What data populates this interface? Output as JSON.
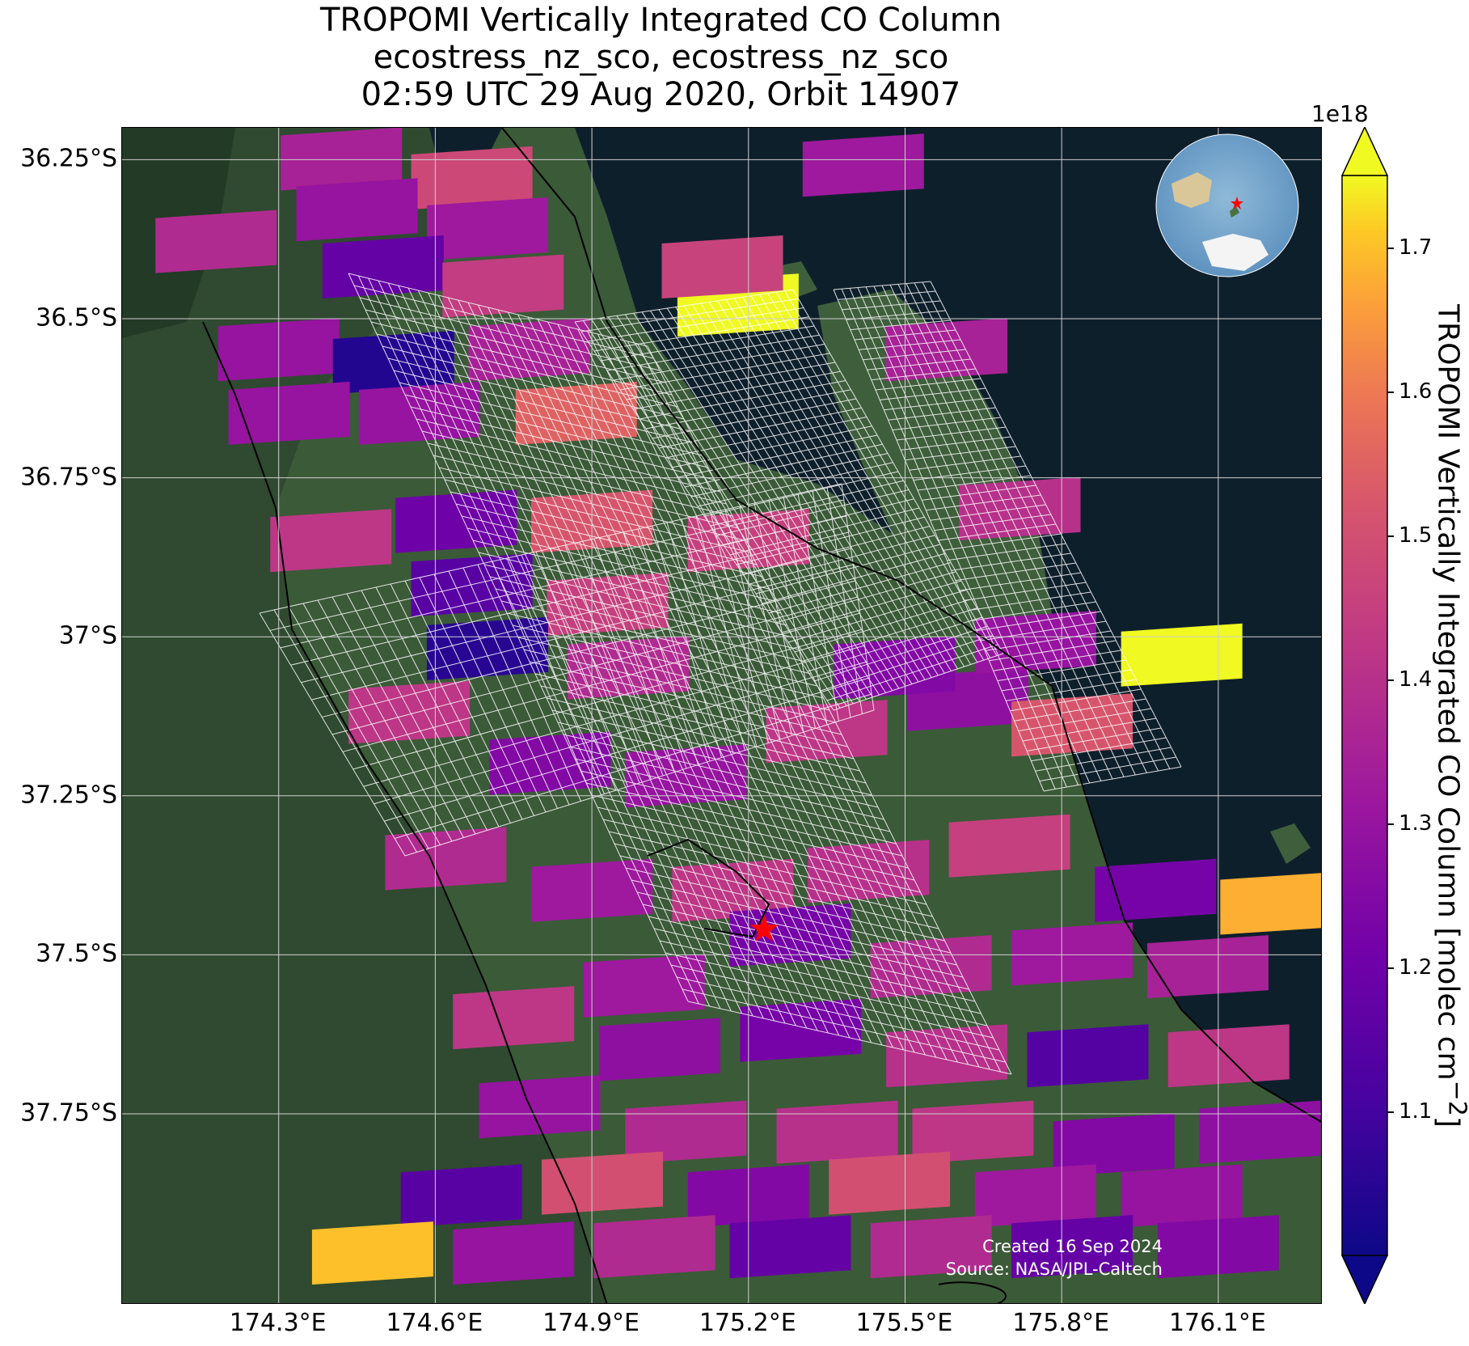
{
  "title": {
    "line1": "TROPOMI Vertically Integrated CO Column",
    "line2": "ecostress_nz_sco, ecostress_nz_sco",
    "line3": "02:59 UTC 29 Aug 2020, Orbit 14907"
  },
  "axes": {
    "lat_ticks": [
      "36.25°S",
      "36.5°S",
      "36.75°S",
      "37°S",
      "37.25°S",
      "37.5°S",
      "37.75°S"
    ],
    "lon_ticks": [
      "174.3°E",
      "174.6°E",
      "174.9°E",
      "175.2°E",
      "175.5°E",
      "175.8°E",
      "176.1°E"
    ]
  },
  "colorbar": {
    "label": "TROPOMI Vertically Integrated CO Column [molec cm",
    "label_sup": "−2",
    "label_end": "]",
    "exponent": "1e18",
    "ticks": [
      "1.1",
      "1.2",
      "1.3",
      "1.4",
      "1.5",
      "1.6",
      "1.7"
    ],
    "colormap": "plasma",
    "range": [
      1.0,
      1.75
    ]
  },
  "credit": {
    "created": "Created 16 Sep 2024",
    "source": "Source: NASA/JPL-Caltech"
  },
  "colors": {
    "ocean": "#0e1f2c",
    "land": "#3b5a38",
    "grid": "#d0d0d0",
    "marker": "#ff0000"
  },
  "map": {
    "pixels": [
      {
        "c": [
          174.42,
          -36.25
        ],
        "v": 1.35
      },
      {
        "c": [
          174.67,
          -36.28
        ],
        "v": 1.48
      },
      {
        "c": [
          174.45,
          -36.33
        ],
        "v": 1.3
      },
      {
        "c": [
          174.7,
          -36.36
        ],
        "v": 1.32
      },
      {
        "c": [
          174.5,
          -36.42
        ],
        "v": 1.18
      },
      {
        "c": [
          174.73,
          -36.45
        ],
        "v": 1.44
      },
      {
        "c": [
          174.3,
          -36.55
        ],
        "v": 1.3
      },
      {
        "c": [
          174.52,
          -36.57
        ],
        "v": 1.04
      },
      {
        "c": [
          174.78,
          -36.55
        ],
        "v": 1.35
      },
      {
        "c": [
          174.32,
          -36.65
        ],
        "v": 1.3
      },
      {
        "c": [
          174.57,
          -36.65
        ],
        "v": 1.3
      },
      {
        "c": [
          174.87,
          -36.65
        ],
        "v": 1.55
      },
      {
        "c": [
          174.4,
          -36.85
        ],
        "v": 1.42
      },
      {
        "c": [
          174.64,
          -36.82
        ],
        "v": 1.2
      },
      {
        "c": [
          174.9,
          -36.82
        ],
        "v": 1.52
      },
      {
        "c": [
          174.67,
          -36.92
        ],
        "v": 1.15
      },
      {
        "c": [
          174.93,
          -36.95
        ],
        "v": 1.45
      },
      {
        "c": [
          174.7,
          -37.02
        ],
        "v": 1.05
      },
      {
        "c": [
          174.97,
          -37.05
        ],
        "v": 1.38
      },
      {
        "c": [
          174.55,
          -37.12
        ],
        "v": 1.42
      },
      {
        "c": [
          174.82,
          -37.2
        ],
        "v": 1.25
      },
      {
        "c": [
          175.08,
          -37.22
        ],
        "v": 1.3
      },
      {
        "c": [
          175.35,
          -37.15
        ],
        "v": 1.42
      },
      {
        "c": [
          175.62,
          -37.1
        ],
        "v": 1.28
      },
      {
        "c": [
          175.82,
          -37.14
        ],
        "v": 1.52
      },
      {
        "c": [
          175.48,
          -37.05
        ],
        "v": 1.25
      },
      {
        "c": [
          175.75,
          -37.01
        ],
        "v": 1.3
      },
      {
        "c": [
          174.62,
          -37.35
        ],
        "v": 1.38
      },
      {
        "c": [
          174.9,
          -37.4
        ],
        "v": 1.32
      },
      {
        "c": [
          175.17,
          -37.4
        ],
        "v": 1.42
      },
      {
        "c": [
          175.43,
          -37.37
        ],
        "v": 1.4
      },
      {
        "c": [
          175.7,
          -37.33
        ],
        "v": 1.45
      },
      {
        "c": [
          175.98,
          -37.4
        ],
        "v": 1.22
      },
      {
        "c": [
          176.22,
          -37.42
        ],
        "v": 1.68
      },
      {
        "c": [
          175.0,
          -37.55
        ],
        "v": 1.32
      },
      {
        "c": [
          175.28,
          -37.47
        ],
        "v": 1.22
      },
      {
        "c": [
          175.55,
          -37.52
        ],
        "v": 1.38
      },
      {
        "c": [
          175.82,
          -37.5
        ],
        "v": 1.32
      },
      {
        "c": [
          176.08,
          -37.52
        ],
        "v": 1.35
      },
      {
        "c": [
          174.75,
          -37.6
        ],
        "v": 1.42
      },
      {
        "c": [
          175.03,
          -37.65
        ],
        "v": 1.28
      },
      {
        "c": [
          175.3,
          -37.62
        ],
        "v": 1.22
      },
      {
        "c": [
          175.58,
          -37.66
        ],
        "v": 1.4
      },
      {
        "c": [
          175.85,
          -37.66
        ],
        "v": 1.14
      },
      {
        "c": [
          176.12,
          -37.66
        ],
        "v": 1.42
      },
      {
        "c": [
          174.8,
          -37.74
        ],
        "v": 1.3
      },
      {
        "c": [
          175.08,
          -37.78
        ],
        "v": 1.38
      },
      {
        "c": [
          175.37,
          -37.78
        ],
        "v": 1.4
      },
      {
        "c": [
          175.63,
          -37.78
        ],
        "v": 1.42
      },
      {
        "c": [
          175.9,
          -37.8
        ],
        "v": 1.25
      },
      {
        "c": [
          176.18,
          -37.78
        ],
        "v": 1.28
      },
      {
        "c": [
          174.65,
          -37.88
        ],
        "v": 1.15
      },
      {
        "c": [
          174.92,
          -37.86
        ],
        "v": 1.5
      },
      {
        "c": [
          175.2,
          -37.88
        ],
        "v": 1.25
      },
      {
        "c": [
          175.47,
          -37.86
        ],
        "v": 1.5
      },
      {
        "c": [
          175.75,
          -37.88
        ],
        "v": 1.32
      },
      {
        "c": [
          176.03,
          -37.88
        ],
        "v": 1.3
      },
      {
        "c": [
          174.48,
          -37.97
        ],
        "v": 1.7
      },
      {
        "c": [
          174.75,
          -37.97
        ],
        "v": 1.3
      },
      {
        "c": [
          175.02,
          -37.96
        ],
        "v": 1.38
      },
      {
        "c": [
          175.28,
          -37.96
        ],
        "v": 1.18
      },
      {
        "c": [
          175.55,
          -37.96
        ],
        "v": 1.38
      },
      {
        "c": [
          175.82,
          -37.96
        ],
        "v": 1.18
      },
      {
        "c": [
          176.1,
          -37.96
        ],
        "v": 1.25
      },
      {
        "c": [
          175.18,
          -36.48
        ],
        "v": 1.76
      },
      {
        "c": [
          175.15,
          -36.42
        ],
        "v": 1.46
      },
      {
        "c": [
          175.58,
          -36.55
        ],
        "v": 1.35
      },
      {
        "c": [
          175.72,
          -36.8
        ],
        "v": 1.4
      },
      {
        "c": [
          176.03,
          -37.03
        ],
        "v": 1.76
      },
      {
        "c": [
          175.42,
          -36.26
        ],
        "v": 1.32
      },
      {
        "c": [
          174.18,
          -36.38
        ],
        "v": 1.38
      },
      {
        "c": [
          175.2,
          -36.85
        ],
        "v": 1.45
      }
    ],
    "marker": {
      "lon": 175.23,
      "lat": -37.46
    },
    "extent": {
      "lon_min": 174.0,
      "lon_max": 176.3,
      "lat_min": -38.05,
      "lat_max": -36.2
    }
  }
}
